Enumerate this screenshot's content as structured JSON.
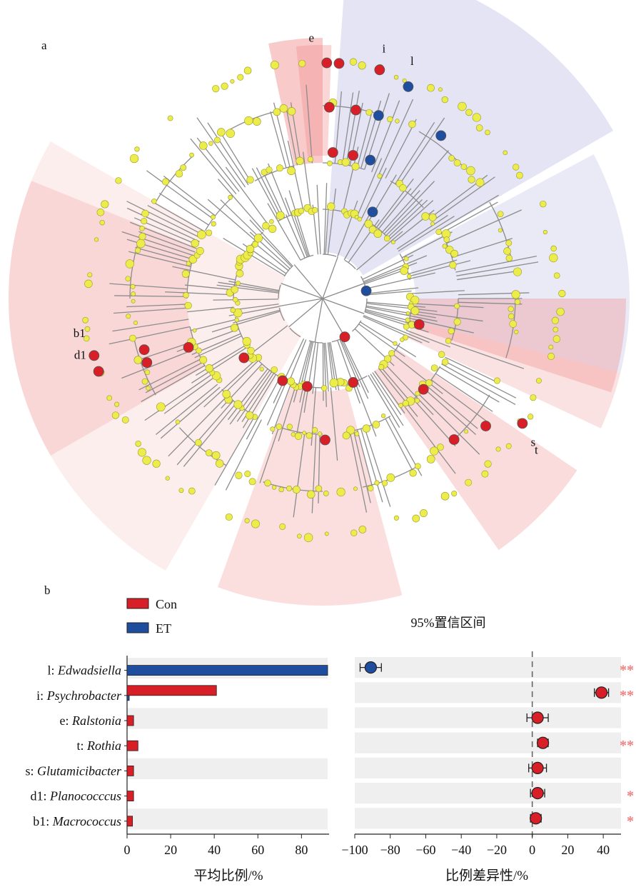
{
  "panel_labels": {
    "a": "a",
    "b": "b"
  },
  "colors": {
    "con": "#d81e26",
    "et": "#1f4e9e",
    "node": "#ecec4a",
    "branch": "#8c8c8c",
    "sector_con": "#f08a8a",
    "sector_et": "#9f9fd6",
    "row_bg": "#efefef",
    "star": "#f08080"
  },
  "cladogram": {
    "clade_letters": [
      "e",
      "i",
      "l",
      "s",
      "t",
      "d1",
      "b1"
    ]
  },
  "legend": [
    {
      "label": "Con",
      "color": "#d81e26"
    },
    {
      "label": "ET",
      "color": "#1f4e9e"
    }
  ],
  "chart_data": [
    {
      "type": "bar",
      "orientation": "horizontal",
      "categories_prefix": [
        "l:",
        "i:",
        "e:",
        "t:",
        "s:",
        "d1:",
        "b1:"
      ],
      "categories": [
        "Edwadsiella",
        "Psychrobacter",
        "Ralstonia",
        "Rothia",
        "Glutamicibacter",
        "Planococccus",
        "Macrococcus"
      ],
      "series": [
        {
          "name": "Con",
          "values": [
            0,
            41,
            3,
            5,
            3,
            3,
            2.5
          ]
        },
        {
          "name": "ET",
          "values": [
            92,
            1,
            0,
            0,
            0,
            0,
            0
          ]
        }
      ],
      "xlabel": "平均比例/%",
      "xlim": [
        0,
        92
      ],
      "xticks": [
        0,
        20,
        40,
        60,
        80
      ]
    },
    {
      "type": "scatter",
      "title": "95%置信区间",
      "xlabel": "比例差异性/%",
      "xlim": [
        -100,
        50
      ],
      "xticks": [
        -100,
        -80,
        -60,
        -40,
        -20,
        0,
        20,
        40
      ],
      "points": [
        {
          "value": -91,
          "ci": [
            -97,
            -85
          ],
          "group": "ET",
          "sig": "**"
        },
        {
          "value": 39,
          "ci": [
            35,
            43
          ],
          "group": "Con",
          "sig": "**"
        },
        {
          "value": 3,
          "ci": [
            -3,
            9
          ],
          "group": "Con",
          "sig": ""
        },
        {
          "value": 6,
          "ci": [
            3,
            9
          ],
          "group": "Con",
          "sig": "**"
        },
        {
          "value": 3,
          "ci": [
            -2,
            8
          ],
          "group": "Con",
          "sig": ""
        },
        {
          "value": 3,
          "ci": [
            -1,
            7
          ],
          "group": "Con",
          "sig": "*"
        },
        {
          "value": 2,
          "ci": [
            -1,
            5
          ],
          "group": "Con",
          "sig": "*"
        }
      ]
    }
  ]
}
